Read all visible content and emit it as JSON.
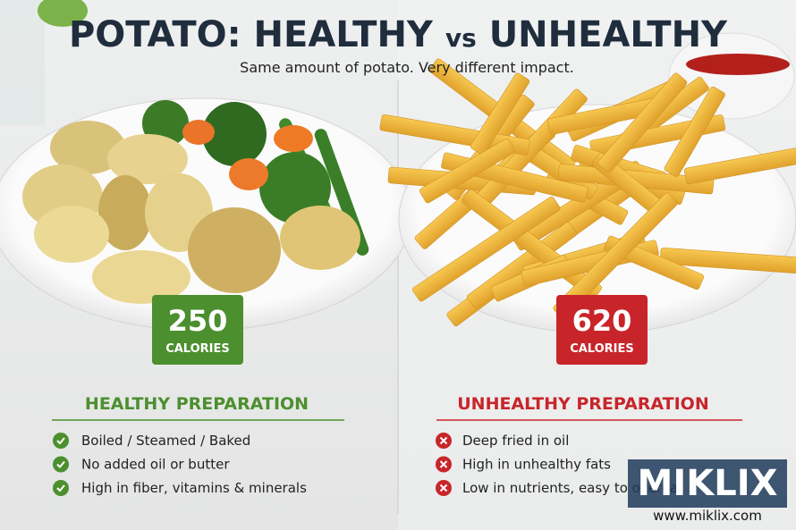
{
  "header": {
    "title_left": "POTATO: HEALTHY",
    "title_vs": "vs",
    "title_right": "UNHEALTHY",
    "subtitle": "Same amount of potato. Very different impact."
  },
  "healthy": {
    "calories": 250,
    "unit": "CALORIES",
    "heading": "HEALTHY PREPARATION",
    "items": [
      "Boiled / Steamed / Baked",
      "No added oil or butter",
      "High in fiber, vitamins & minerals"
    ]
  },
  "unhealthy": {
    "calories": 620,
    "unit": "CALORIES",
    "heading": "UNHEALTHY PREPARATION",
    "items": [
      "Deep fried in oil",
      "High in unhealthy fats",
      "Low in nutrients, easy to overeat"
    ]
  },
  "watermark": {
    "brand": "MIKLIX",
    "url": "www.miklix.com"
  }
}
